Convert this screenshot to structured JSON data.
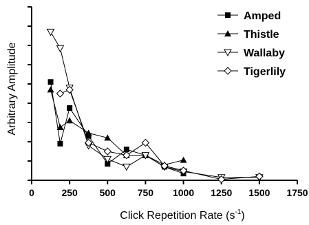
{
  "chart_data": {
    "type": "line",
    "xlabel": "Click Repetition Rate (s",
    "xlabel_sup": "-1",
    "xlabel_end": ")",
    "ylabel": "Arbitrary Amplitude",
    "xlim": [
      0,
      1750
    ],
    "ylim": [
      0,
      9
    ],
    "xticks": [
      0,
      250,
      500,
      750,
      1000,
      1250,
      1500,
      1750
    ],
    "xtick_labels": [
      "0",
      "250",
      "500",
      "750",
      "1000",
      "1250",
      "1500",
      "1750"
    ],
    "yticks": [
      0,
      1,
      2,
      3,
      4,
      5,
      6,
      7,
      8,
      9
    ],
    "y_tick_labels_shown": false,
    "grid": false,
    "legend_position": "top-right",
    "series": [
      {
        "name": "Amped",
        "marker": "filled-square",
        "x": [
          125,
          188,
          250,
          375,
          500,
          625,
          750,
          875,
          1000
        ],
        "y": [
          5.1,
          1.9,
          3.75,
          2.3,
          0.85,
          1.6,
          1.3,
          0.7,
          0.35
        ]
      },
      {
        "name": "Thistle",
        "marker": "filled-triangle",
        "x": [
          125,
          188,
          250,
          375,
          500,
          625,
          750,
          875,
          1000
        ],
        "y": [
          4.7,
          2.75,
          3.1,
          2.45,
          2.2,
          1.3,
          1.3,
          0.8,
          1.05
        ]
      },
      {
        "name": "Wallaby",
        "marker": "open-triangle-down",
        "x": [
          125,
          188,
          250,
          375,
          500,
          625,
          750,
          875,
          1000,
          1250,
          1500
        ],
        "y": [
          7.7,
          6.85,
          4.8,
          1.8,
          1.1,
          0.7,
          1.3,
          0.7,
          0.45,
          0.15,
          0.15
        ]
      },
      {
        "name": "Tigerlily",
        "marker": "open-diamond",
        "x": [
          188,
          250,
          375,
          500,
          625,
          750,
          875,
          1000,
          1250,
          1500
        ],
        "y": [
          4.5,
          4.7,
          1.95,
          1.5,
          1.3,
          1.95,
          0.75,
          0.5,
          0.05,
          0.2
        ]
      }
    ]
  }
}
